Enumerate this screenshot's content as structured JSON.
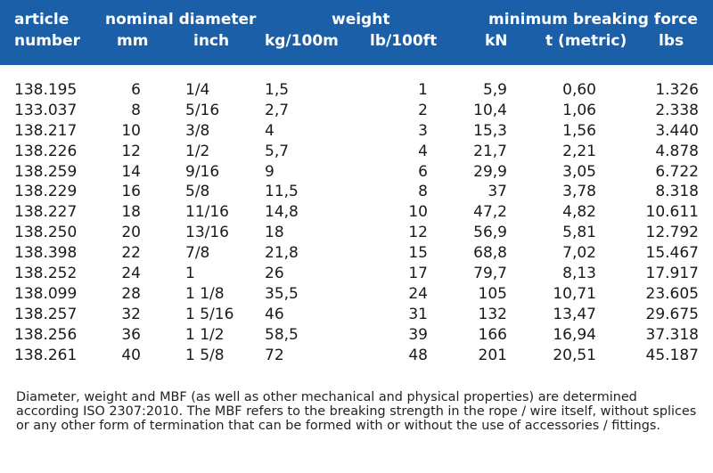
{
  "header": {
    "article": "article",
    "number": "number",
    "nominal_diameter": "nominal diameter",
    "mm": "mm",
    "inch": "inch",
    "weight": "weight",
    "kg": "kg/100m",
    "lb": "lb/100ft",
    "mbf": "minimum breaking force",
    "kn": "kN",
    "t": "t (metric)",
    "lbs": "lbs"
  },
  "rows": [
    {
      "article": "138.195",
      "mm": "6",
      "inch": "1/4",
      "kg": "1,5",
      "lb": "1",
      "kn": "5,9",
      "t": "0,60",
      "lbs": "1.326"
    },
    {
      "article": "133.037",
      "mm": "8",
      "inch": "5/16",
      "kg": "2,7",
      "lb": "2",
      "kn": "10,4",
      "t": "1,06",
      "lbs": "2.338"
    },
    {
      "article": "138.217",
      "mm": "10",
      "inch": "3/8",
      "kg": "4",
      "lb": "3",
      "kn": "15,3",
      "t": "1,56",
      "lbs": "3.440"
    },
    {
      "article": "138.226",
      "mm": "12",
      "inch": "1/2",
      "kg": "5,7",
      "lb": "4",
      "kn": "21,7",
      "t": "2,21",
      "lbs": "4.878"
    },
    {
      "article": "138.259",
      "mm": "14",
      "inch": "9/16",
      "kg": "9",
      "lb": "6",
      "kn": "29,9",
      "t": "3,05",
      "lbs": "6.722"
    },
    {
      "article": "138.229",
      "mm": "16",
      "inch": "5/8",
      "kg": "11,5",
      "lb": "8",
      "kn": "37",
      "t": "3,78",
      "lbs": "8.318"
    },
    {
      "article": "138.227",
      "mm": "18",
      "inch": "11/16",
      "kg": "14,8",
      "lb": "10",
      "kn": "47,2",
      "t": "4,82",
      "lbs": "10.611"
    },
    {
      "article": "138.250",
      "mm": "20",
      "inch": "13/16",
      "kg": "18",
      "lb": "12",
      "kn": "56,9",
      "t": "5,81",
      "lbs": "12.792"
    },
    {
      "article": "138.398",
      "mm": "22",
      "inch": "7/8",
      "kg": "21,8",
      "lb": "15",
      "kn": "68,8",
      "t": "7,02",
      "lbs": "15.467"
    },
    {
      "article": "138.252",
      "mm": "24",
      "inch": "1",
      "kg": "26",
      "lb": "17",
      "kn": "79,7",
      "t": "8,13",
      "lbs": "17.917"
    },
    {
      "article": "138.099",
      "mm": "28",
      "inch": "1 1/8",
      "kg": "35,5",
      "lb": "24",
      "kn": "105",
      "t": "10,71",
      "lbs": "23.605"
    },
    {
      "article": "138.257",
      "mm": "32",
      "inch": "1 5/16",
      "kg": "46",
      "lb": "31",
      "kn": "132",
      "t": "13,47",
      "lbs": "29.675"
    },
    {
      "article": "138.256",
      "mm": "36",
      "inch": "1 1/2",
      "kg": "58,5",
      "lb": "39",
      "kn": "166",
      "t": "16,94",
      "lbs": "37.318"
    },
    {
      "article": "138.261",
      "mm": "40",
      "inch": "1 5/8",
      "kg": "72",
      "lb": "48",
      "kn": "201",
      "t": "20,51",
      "lbs": "45.187"
    }
  ],
  "footnote": "Diameter, weight and MBF (as well as other mechanical and physical properties) are determined according ISO 2307:2010. The MBF refers to the breaking strength in the rope / wire itself, without splices or any other form of termination that can be formed with or without the use of accessories / fittings."
}
